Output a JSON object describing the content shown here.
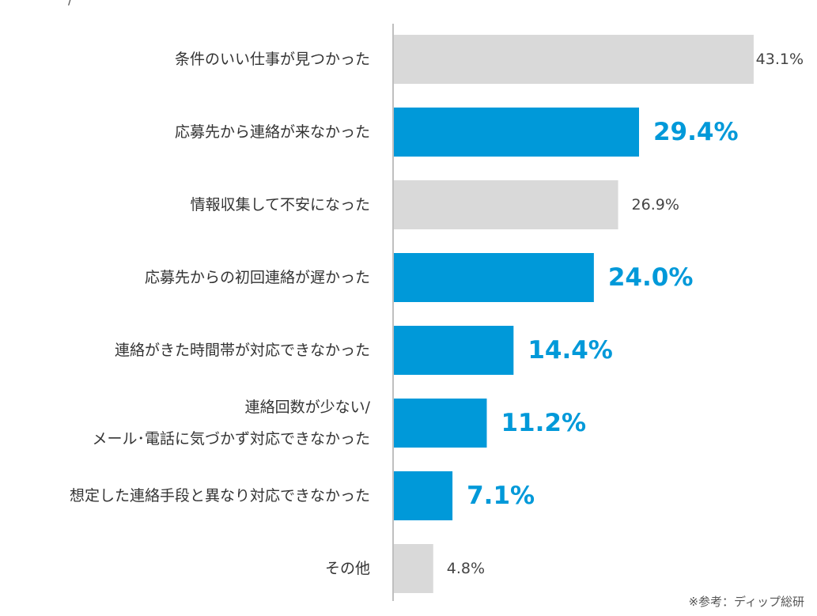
{
  "chart_data": {
    "type": "bar",
    "orientation": "horizontal",
    "categories": [
      [
        "条件のいい仕事が見つかった"
      ],
      [
        "応募先から連絡が来なかった"
      ],
      [
        "情報収集して不安になった"
      ],
      [
        "応募先からの初回連絡が遅かった"
      ],
      [
        "連絡がきた時間帯が対応できなかった"
      ],
      [
        "連絡回数が少ない/",
        "メール･電話に気づかず対応できなかった"
      ],
      [
        "想定した連絡手段と異なり対応できなかった"
      ],
      [
        "その他"
      ]
    ],
    "values": [
      43.1,
      29.4,
      26.9,
      24.0,
      14.4,
      11.2,
      7.1,
      4.8
    ],
    "value_labels": [
      "43.1%",
      "29.4%",
      "26.9%",
      "24.0%",
      "14.4%",
      "11.2%",
      "7.1%",
      "4.8%"
    ],
    "highlighted": [
      false,
      true,
      false,
      true,
      true,
      true,
      true,
      false
    ],
    "xlim": [
      0,
      45
    ],
    "colors": {
      "highlight": "#0099d9",
      "normal": "#d9d9d9",
      "axis": "#bfbfbf",
      "highlight_text": "#0099d9",
      "normal_text": "#444444"
    }
  },
  "top_mark": "/",
  "source_note": "※参考：ディップ総研"
}
